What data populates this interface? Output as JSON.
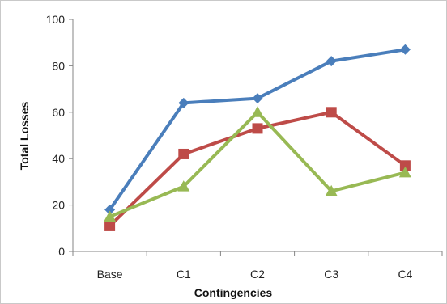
{
  "chart_data": {
    "type": "line",
    "categories": [
      "Base",
      "C1",
      "C2",
      "C3",
      "C4"
    ],
    "series": [
      {
        "color": "#4a7ebb",
        "marker": "diamond",
        "values": [
          18,
          64,
          66,
          82,
          87
        ]
      },
      {
        "color": "#be4b48",
        "marker": "square",
        "values": [
          11,
          42,
          53,
          60,
          37
        ]
      },
      {
        "color": "#98b954",
        "marker": "triangle",
        "values": [
          15,
          28,
          60,
          26,
          34
        ]
      }
    ],
    "title": "",
    "xlabel": "Contingencies",
    "ylabel": "Total Losses",
    "ylim": [
      0,
      100
    ],
    "yticks": [
      "0",
      "20",
      "40",
      "60",
      "80",
      "100"
    ],
    "grid": false,
    "legend": "none"
  }
}
